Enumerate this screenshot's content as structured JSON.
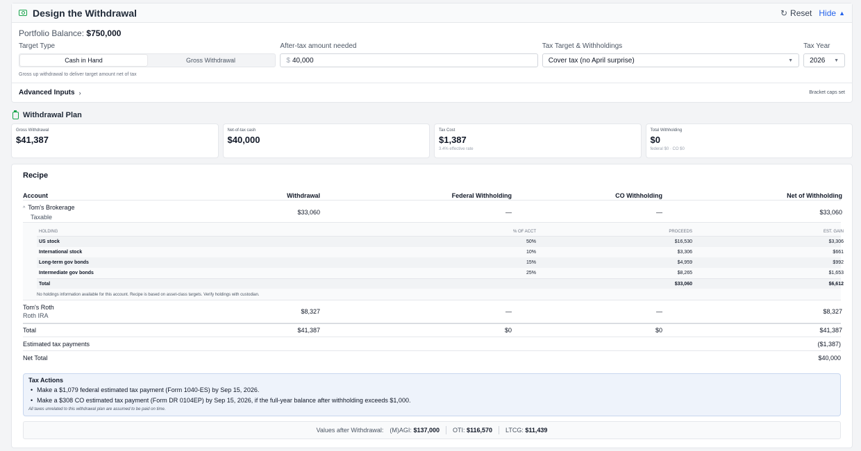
{
  "design": {
    "title": "Design the Withdrawal",
    "reset": "Reset",
    "hide": "Hide",
    "balance_label": "Portfolio Balance:",
    "balance_value": "$750,000",
    "target_type_label": "Target Type",
    "target_types": [
      "Cash in Hand",
      "Gross Withdrawal"
    ],
    "target_hint": "Gross up withdrawal to deliver target amount net of tax",
    "amount_label": "After-tax amount needed",
    "amount_currency": "$",
    "amount_value": "40,000",
    "tax_target_label": "Tax Target & Withholdings",
    "tax_target_value": "Cover tax (no April surprise)",
    "tax_year_label": "Tax Year",
    "tax_year_value": "2026",
    "advanced": "Advanced Inputs",
    "bracket_caps": "Bracket caps set"
  },
  "plan": {
    "title": "Withdrawal Plan",
    "kpis": [
      {
        "label": "Gross Withdrawal",
        "value": "$41,387",
        "sub": ""
      },
      {
        "label": "Net-of-tax cash",
        "value": "$40,000",
        "sub": ""
      },
      {
        "label": "Tax Cost",
        "value": "$1,387",
        "sub": "3.4% effective rate"
      },
      {
        "label": "Total Withholding",
        "value": "$0",
        "sub": "federal $0 · CO $0"
      }
    ]
  },
  "recipe": {
    "title": "Recipe",
    "columns": [
      "Account",
      "Withdrawal",
      "Federal Withholding",
      "CO Withholding",
      "Net of Withholding"
    ],
    "accounts": [
      {
        "name": "Tom's Brokerage",
        "type": "Taxable",
        "withdrawal": "$33,060",
        "fed": "—",
        "co": "—",
        "net": "$33,060"
      },
      {
        "name": "Tom's Roth",
        "type": "Roth IRA",
        "withdrawal": "$8,327",
        "fed": "—",
        "co": "—",
        "net": "$8,327"
      }
    ],
    "holdings_columns": [
      "HOLDING",
      "% OF ACCT",
      "PROCEEDS",
      "EST. GAIN"
    ],
    "holdings": [
      {
        "name": "US stock",
        "pct": "50%",
        "proceeds": "$16,530",
        "gain": "$3,306"
      },
      {
        "name": "International stock",
        "pct": "10%",
        "proceeds": "$3,306",
        "gain": "$661"
      },
      {
        "name": "Long-term gov bonds",
        "pct": "15%",
        "proceeds": "$4,959",
        "gain": "$992"
      },
      {
        "name": "Intermediate gov bonds",
        "pct": "25%",
        "proceeds": "$8,265",
        "gain": "$1,653"
      }
    ],
    "holdings_total": {
      "name": "Total",
      "proceeds": "$33,060",
      "gain": "$6,612"
    },
    "holdings_note": "No holdings information available for this account. Recipe is based on asset-class targets. Verify holdings with custodian.",
    "total": {
      "label": "Total",
      "withdrawal": "$41,387",
      "fed": "$0",
      "co": "$0",
      "net": "$41,387"
    },
    "est_tax": {
      "label": "Estimated tax payments",
      "value": "($1,387)"
    },
    "net_total": {
      "label": "Net Total",
      "value": "$40,000"
    }
  },
  "tax_actions": {
    "title": "Tax Actions",
    "items": [
      "Make a $1,079 federal estimated tax payment (Form 1040-ES) by Sep 15, 2026.",
      "Make a $308 CO estimated tax payment (Form DR 0104EP) by Sep 15, 2026, if the full-year balance after withholding exceeds $1,000."
    ],
    "note": "All taxes unrelated to this withdrawal plan are assumed to be paid on time."
  },
  "values_after": {
    "label": "Values after Withdrawal:",
    "magi_label": "(M)AGI:",
    "magi": "$137,000",
    "oti_label": "OTI:",
    "oti": "$116,570",
    "ltcg_label": "LTCG:",
    "ltcg": "$11,439"
  }
}
